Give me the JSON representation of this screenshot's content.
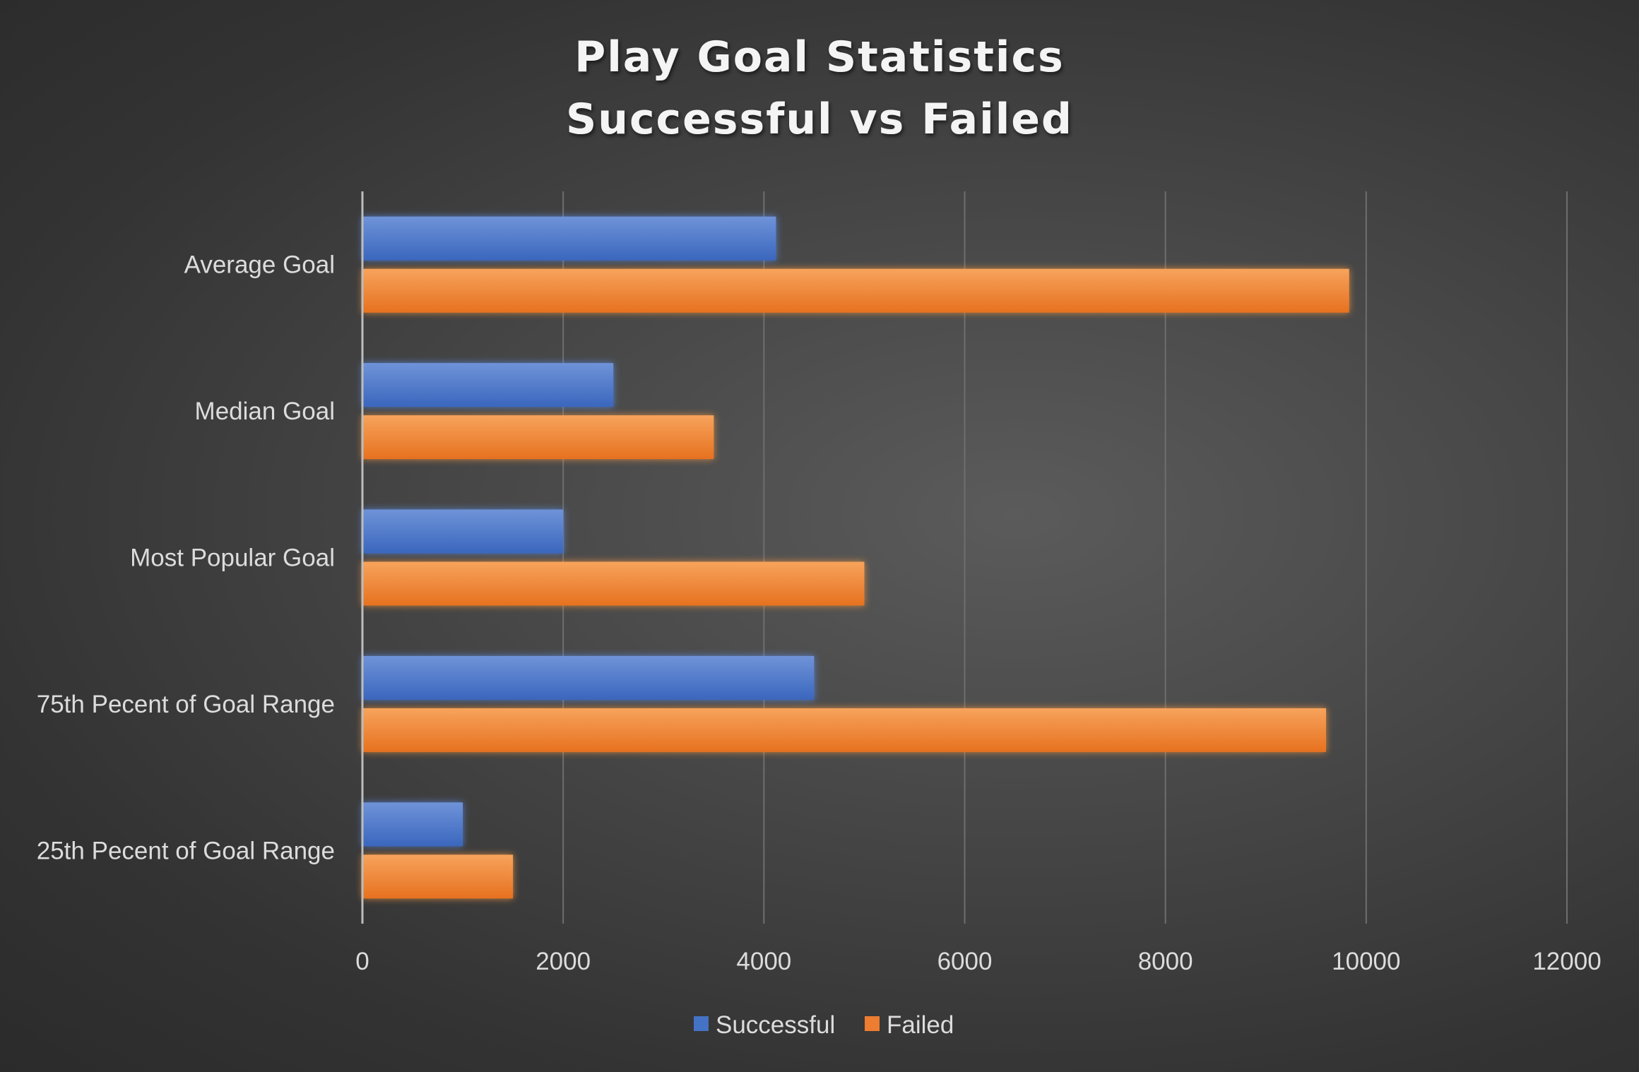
{
  "chart_data": {
    "type": "bar",
    "orientation": "horizontal",
    "title_lines": [
      "Play Goal Statistics",
      "Successful vs Failed"
    ],
    "categories": [
      "Average Goal",
      "Median Goal",
      "Most Popular Goal",
      "75th Pecent of Goal Range",
      "25th Pecent of Goal Range"
    ],
    "series": [
      {
        "name": "Successful",
        "color": "#4472c4",
        "values": [
          4120,
          2500,
          2000,
          4500,
          1000
        ]
      },
      {
        "name": "Failed",
        "color": "#ed7d31",
        "values": [
          9830,
          3500,
          5000,
          9600,
          1500
        ]
      }
    ],
    "xlim": [
      0,
      12000
    ],
    "xticks": [
      0,
      2000,
      4000,
      6000,
      8000,
      10000,
      12000
    ],
    "grid": true,
    "legend_position": "bottom",
    "xlabel": "",
    "ylabel": ""
  }
}
